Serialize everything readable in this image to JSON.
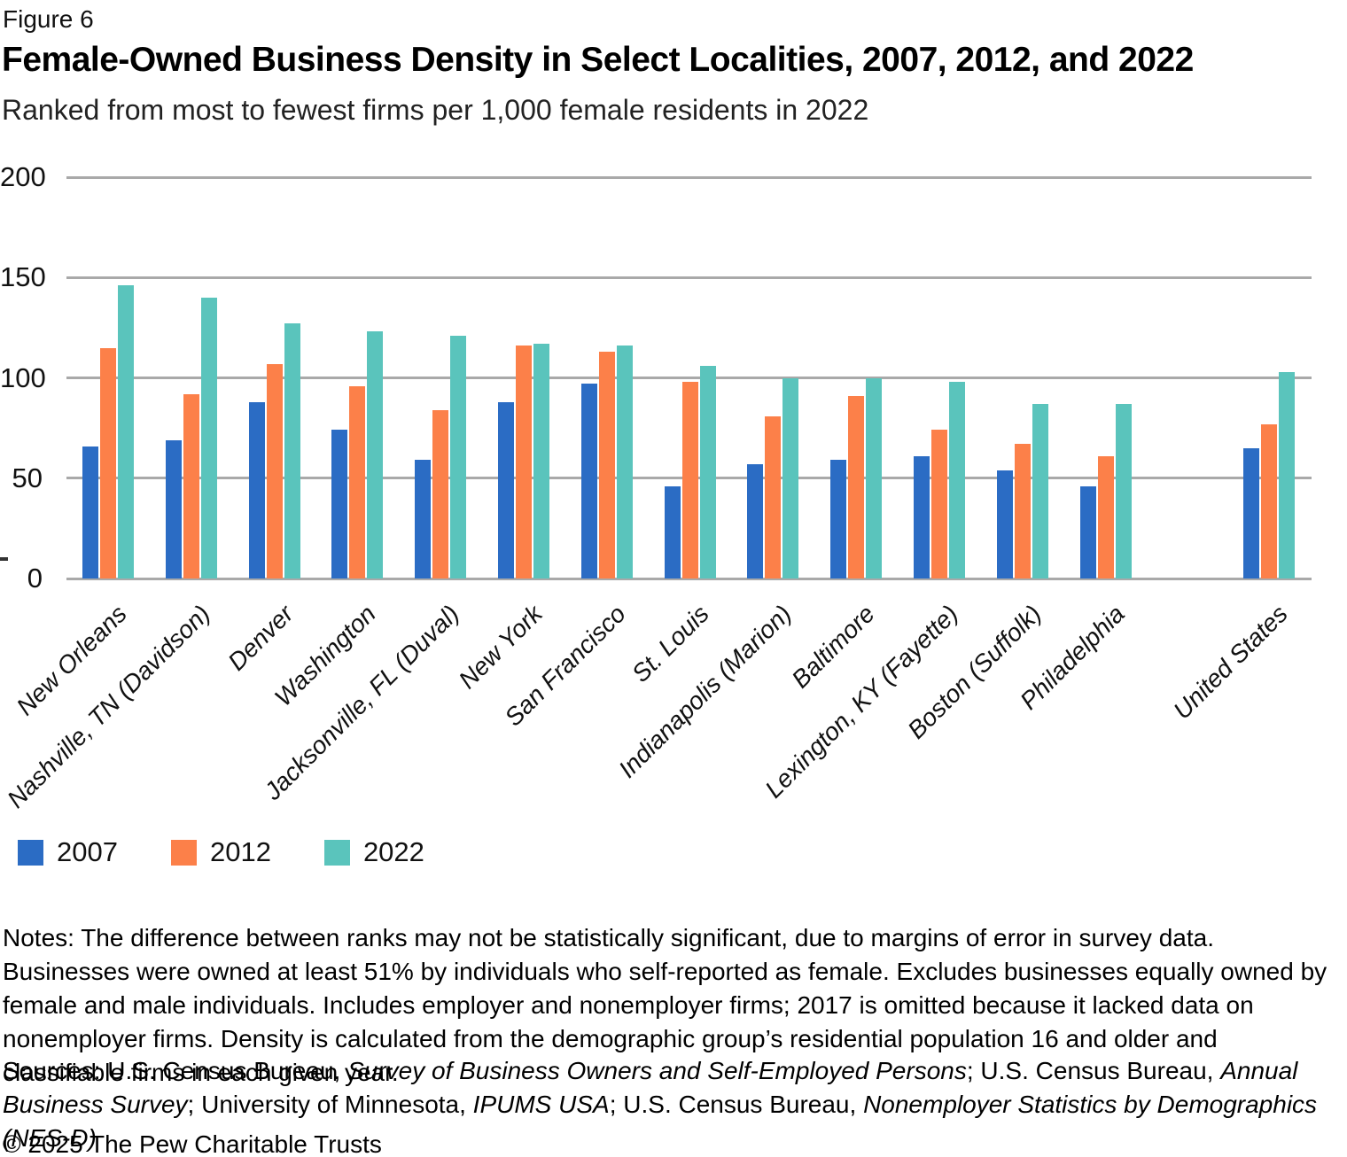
{
  "figure_label": "Figure 6",
  "title": "Female-Owned Business Density in Select Localities, 2007, 2012, and 2022",
  "subtitle": "Ranked from most to fewest firms per 1,000 female residents in 2022",
  "chart_data": {
    "type": "bar",
    "title": "Female-Owned Business Density in Select Localities, 2007, 2012, and 2022",
    "subtitle": "Ranked from most to fewest firms per 1,000 female residents in 2022",
    "unit": "firms per 1,000 female residents",
    "categories": [
      "New Orleans",
      "Nashville, TN (Davidson)",
      "Denver",
      "Washington",
      "Jacksonville, FL (Duval)",
      "New York",
      "San Francisco",
      "St. Louis",
      "Indianapolis (Marion)",
      "Baltimore",
      "Lexington, KY (Fayette)",
      "Boston (Suffolk)",
      "Philadelphia",
      "United States"
    ],
    "series": [
      {
        "name": "2007",
        "color": "#2b6cc4",
        "values": [
          66,
          69,
          88,
          74,
          59,
          88,
          97,
          46,
          57,
          59,
          61,
          54,
          46,
          65
        ]
      },
      {
        "name": "2012",
        "color": "#fc8049",
        "values": [
          115,
          92,
          107,
          96,
          84,
          116,
          113,
          98,
          81,
          91,
          74,
          67,
          61,
          77
        ]
      },
      {
        "name": "2022",
        "color": "#5ac4bc",
        "values": [
          146,
          140,
          127,
          123,
          121,
          117,
          116,
          106,
          100,
          100,
          98,
          87,
          87,
          103
        ]
      }
    ],
    "ylim": [
      0,
      200
    ],
    "yticks": [
      0,
      50,
      100,
      150,
      200
    ],
    "grid": true,
    "gridline_color": "#a9a9a9",
    "legend_position": "bottom-left",
    "x_labels_rotated": true,
    "gap_before_last_category": true
  },
  "notes": "Notes: The difference between ranks may not be statistically significant, due to margins of error in survey data. Businesses were owned at least 51% by individuals who self-reported as female. Excludes businesses equally owned by female and male individuals. Includes employer and nonemployer firms; 2017 is omitted because it lacked data on nonemployer firms. Density is calculated from the demographic group’s residential population 16 and older and classifiable firms in each given year.",
  "sources_segments": [
    {
      "text": "Sources: U.S. Census Bureau, ",
      "italic": false
    },
    {
      "text": "Survey of Business Owners and Self-Employed Persons",
      "italic": true
    },
    {
      "text": "; U.S. Census Bureau, ",
      "italic": false
    },
    {
      "text": "Annual Business Survey",
      "italic": true
    },
    {
      "text": "; University of Minnesota, ",
      "italic": false
    },
    {
      "text": "IPUMS USA",
      "italic": true
    },
    {
      "text": "; U.S. Census Bureau, ",
      "italic": false
    },
    {
      "text": "Nonemployer Statistics by Demographics (NES-D)",
      "italic": true
    }
  ],
  "copyright": "© 2025 The Pew Charitable Trusts"
}
